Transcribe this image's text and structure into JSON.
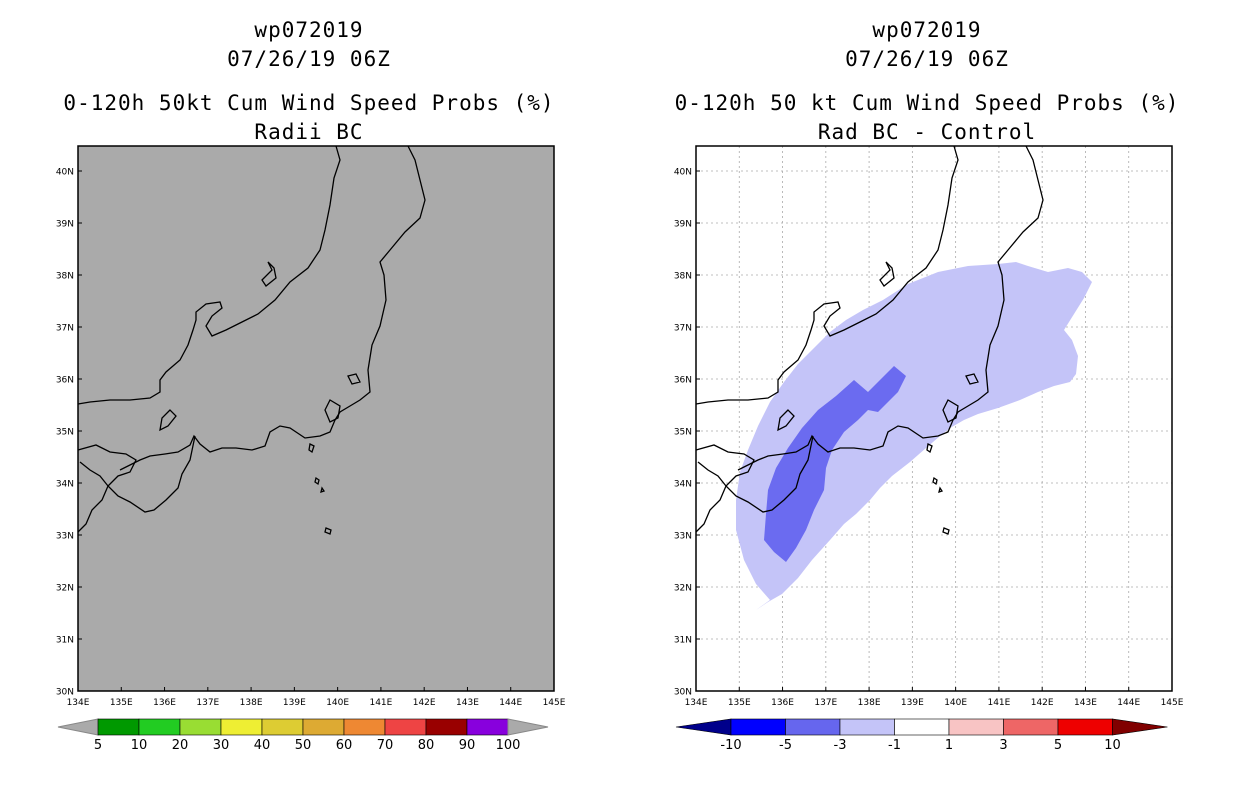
{
  "left": {
    "storm": "wp072019",
    "datetime": "07/26/19 06Z",
    "product": "0-120h 50kt Cum Wind Speed Probs (%)",
    "subtitle": "Radii BC",
    "legend": {
      "labels": [
        "5",
        "10",
        "20",
        "30",
        "40",
        "50",
        "60",
        "70",
        "80",
        "90",
        "100"
      ],
      "colors": [
        "#009900",
        "#22cc22",
        "#99dd33",
        "#eeee33",
        "#ddcc33",
        "#ddaa33",
        "#ee8833",
        "#ee4444",
        "#990000",
        "#8800dd"
      ]
    }
  },
  "right": {
    "storm": "wp072019",
    "datetime": "07/26/19 06Z",
    "product": "0-120h 50 kt Cum Wind Speed Probs (%)",
    "subtitle": "Rad BC - Control",
    "legend": {
      "labels": [
        "-10",
        "-5",
        "-3",
        "-1",
        "1",
        "3",
        "5",
        "10"
      ],
      "colors": [
        "#0000ff",
        "#6666ee",
        "#c4c4f8",
        "#ffffff",
        "#f8c4c4",
        "#ee6666",
        "#ee0000"
      ],
      "end_left": "#00008b",
      "end_right": "#800000"
    }
  },
  "axes": {
    "lat_labels": [
      "30N",
      "31N",
      "32N",
      "33N",
      "34N",
      "35N",
      "36N",
      "37N",
      "38N",
      "39N",
      "40N"
    ],
    "lon_labels": [
      "134E",
      "135E",
      "136E",
      "137E",
      "138E",
      "139E",
      "140E",
      "141E",
      "142E",
      "143E",
      "144E",
      "145E"
    ]
  },
  "colors": {
    "land_fill_left": "#aaaaaa",
    "diff_light": "#c4c4f8",
    "diff_mid": "#6b6bf0"
  }
}
